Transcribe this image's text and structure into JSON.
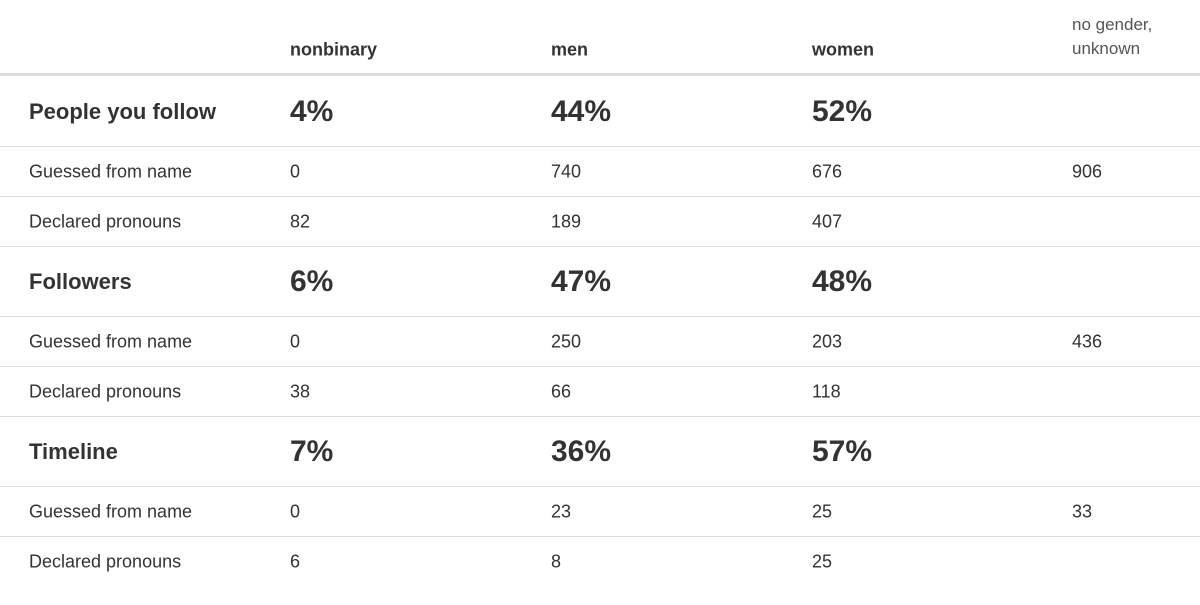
{
  "table": {
    "columns": [
      "nonbinary",
      "men",
      "women",
      "no gender, unknown"
    ],
    "sections": [
      {
        "title": "People you follow",
        "percentages": [
          "4%",
          "44%",
          "52%"
        ],
        "rows": [
          {
            "label": "Guessed from name",
            "values": [
              0,
              740,
              676,
              906
            ]
          },
          {
            "label": "Declared pronouns",
            "values": [
              82,
              189,
              407
            ]
          }
        ]
      },
      {
        "title": "Followers",
        "percentages": [
          "6%",
          "47%",
          "48%"
        ],
        "rows": [
          {
            "label": "Guessed from name",
            "values": [
              0,
              250,
              203,
              436
            ]
          },
          {
            "label": "Declared pronouns",
            "values": [
              38,
              66,
              118
            ]
          }
        ]
      },
      {
        "title": "Timeline",
        "percentages": [
          "7%",
          "36%",
          "57%"
        ],
        "rows": [
          {
            "label": "Guessed from name",
            "values": [
              0,
              23,
              25,
              33
            ]
          },
          {
            "label": "Declared pronouns",
            "values": [
              6,
              8,
              25
            ]
          }
        ]
      }
    ]
  }
}
